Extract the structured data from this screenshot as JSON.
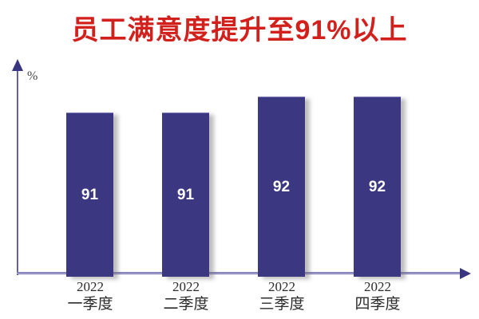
{
  "title": {
    "text": "员工满意度提升至91%以上",
    "color": "#d2201c"
  },
  "y_axis": {
    "unit_label": "%"
  },
  "chart_data": {
    "type": "bar",
    "title": "员工满意度提升至91%以上",
    "categories": [
      "2022 一季度",
      "2022 二季度",
      "2022 三季度",
      "2022 四季度"
    ],
    "values": [
      91,
      91,
      92,
      92
    ],
    "xlabel": "",
    "ylabel": "%",
    "grid": false,
    "legend": false,
    "data_label_position": "inside-center",
    "bar_color": "#3b3780",
    "axis_color": "#4a4694",
    "value_label_color": "#ffffff",
    "bars": [
      {
        "year": "2022",
        "quarter": "一季度",
        "value": "91"
      },
      {
        "year": "2022",
        "quarter": "二季度",
        "value": "91"
      },
      {
        "year": "2022",
        "quarter": "三季度",
        "value": "92"
      },
      {
        "year": "2022",
        "quarter": "四季度",
        "value": "92"
      }
    ]
  }
}
